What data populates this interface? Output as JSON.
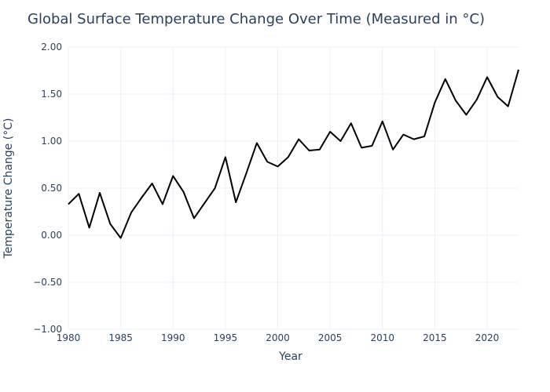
{
  "chart_data": {
    "type": "line",
    "title": "Global Surface Temperature Change Over Time (Measured in °C)",
    "xlabel": "Year",
    "ylabel": "Temperature Change (°C)",
    "xlim": [
      1980,
      2023
    ],
    "ylim": [
      -1.0,
      2.0
    ],
    "x_ticks": [
      1980,
      1985,
      1990,
      1995,
      2000,
      2005,
      2010,
      2015,
      2020
    ],
    "x_tick_labels": [
      "1980",
      "1985",
      "1990",
      "1995",
      "2000",
      "2005",
      "2010",
      "2015",
      "2020"
    ],
    "y_ticks": [
      -1.0,
      -0.5,
      0.0,
      0.5,
      1.0,
      1.5,
      2.0
    ],
    "y_tick_labels": [
      "−1.00",
      "−0.50",
      "0.00",
      "0.50",
      "1.00",
      "1.50",
      "2.00"
    ],
    "grid": true,
    "legend": false,
    "x": [
      1980,
      1981,
      1982,
      1983,
      1984,
      1985,
      1986,
      1987,
      1988,
      1989,
      1990,
      1991,
      1992,
      1993,
      1994,
      1995,
      1996,
      1997,
      1998,
      1999,
      2000,
      2001,
      2002,
      2003,
      2004,
      2005,
      2006,
      2007,
      2008,
      2009,
      2010,
      2011,
      2012,
      2013,
      2014,
      2015,
      2016,
      2017,
      2018,
      2019,
      2020,
      2021,
      2022,
      2023
    ],
    "series": [
      {
        "color": "#000000",
        "values": [
          0.33,
          0.44,
          0.08,
          0.45,
          0.12,
          -0.03,
          0.24,
          0.4,
          0.55,
          0.33,
          0.63,
          0.46,
          0.18,
          0.34,
          0.5,
          0.83,
          0.35,
          0.66,
          0.98,
          0.78,
          0.73,
          0.83,
          1.02,
          0.9,
          0.91,
          1.1,
          1.0,
          1.19,
          0.93,
          0.95,
          1.21,
          0.91,
          1.07,
          1.02,
          1.05,
          1.41,
          1.66,
          1.43,
          1.28,
          1.44,
          1.68,
          1.47,
          1.37,
          1.76
        ]
      }
    ]
  }
}
